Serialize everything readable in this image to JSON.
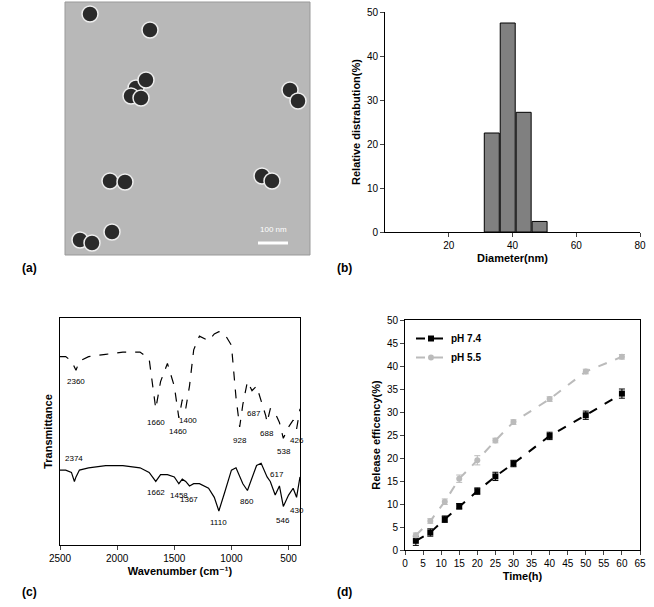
{
  "chart_data": [
    {
      "type": "image",
      "panel": "(a)",
      "scale_bar": "100 nm"
    },
    {
      "type": "histogram",
      "panel": "(b)",
      "x_label": "Diameter(nm)",
      "y_label": "Relative distrabution(%)",
      "bins": [
        31,
        36,
        41,
        46,
        51
      ],
      "values": [
        22.5,
        47.5,
        27.2,
        2.4
      ],
      "color": "#808080",
      "xlim": [
        0,
        80
      ],
      "xticks": [
        20,
        40,
        60,
        80
      ],
      "ylim": [
        0,
        50
      ],
      "yticks": [
        0,
        10,
        20,
        30,
        40,
        50
      ],
      "grid": false
    },
    {
      "type": "line",
      "panel": "(c)",
      "x_label": "Wavenumber (cm⁻¹)",
      "y_label": "Transmittance",
      "x": [
        2500,
        2450,
        2400,
        2374,
        2360,
        2330,
        2250,
        2100,
        1950,
        1800,
        1720,
        1662,
        1620,
        1560,
        1500,
        1460,
        1430,
        1400,
        1367,
        1330,
        1280,
        1200,
        1150,
        1110,
        1060,
        1000,
        960,
        928,
        900,
        860,
        820,
        780,
        740,
        700,
        688,
        660,
        617,
        580,
        546,
        500,
        460,
        430,
        400
      ],
      "series": [
        {
          "color": "#000000",
          "line_style": "dashed",
          "values": [
            83,
            83,
            81,
            78,
            77,
            81,
            83,
            84,
            85,
            85,
            82,
            60,
            72,
            80,
            70,
            56,
            64,
            60,
            70,
            86,
            92,
            90,
            93,
            94,
            93,
            88,
            65,
            52,
            62,
            72,
            68,
            70,
            64,
            57,
            54,
            60,
            58,
            54,
            47,
            52,
            55,
            51,
            60
          ]
        },
        {
          "color": "#000000",
          "line_style": "solid",
          "values": [
            33,
            33,
            32,
            28,
            30,
            33,
            34,
            35,
            35,
            34,
            32,
            28,
            31,
            31,
            30,
            27,
            29,
            28,
            26,
            27,
            27,
            25,
            21,
            15,
            23,
            33,
            34,
            30,
            27,
            24,
            30,
            35,
            36,
            31,
            30,
            28,
            22,
            26,
            17,
            22,
            25,
            21,
            30
          ]
        }
      ],
      "annotations": [
        {
          "text": "2360",
          "x": 2360,
          "y": 72
        },
        {
          "text": "1660",
          "x": 1660,
          "y": 54
        },
        {
          "text": "1460",
          "x": 1470,
          "y": 50
        },
        {
          "text": "1400",
          "x": 1380,
          "y": 55
        },
        {
          "text": "928",
          "x": 928,
          "y": 46
        },
        {
          "text": "687",
          "x": 800,
          "y": 58
        },
        {
          "text": "688",
          "x": 690,
          "y": 49
        },
        {
          "text": "538",
          "x": 540,
          "y": 41
        },
        {
          "text": "426",
          "x": 426,
          "y": 46
        },
        {
          "text": "2374",
          "x": 2374,
          "y": 38
        },
        {
          "text": "1662",
          "x": 1662,
          "y": 23
        },
        {
          "text": "1458",
          "x": 1458,
          "y": 22
        },
        {
          "text": "1367",
          "x": 1367,
          "y": 20
        },
        {
          "text": "1110",
          "x": 1110,
          "y": 10
        },
        {
          "text": "860",
          "x": 860,
          "y": 19
        },
        {
          "text": "617",
          "x": 600,
          "y": 31
        },
        {
          "text": "546",
          "x": 546,
          "y": 11
        },
        {
          "text": "430",
          "x": 430,
          "y": 15
        }
      ],
      "xlim": [
        2500,
        400
      ],
      "xticks": [
        2500,
        2000,
        1500,
        1000,
        500
      ],
      "ylim": [
        0,
        100
      ],
      "yticks": [],
      "tick_labels": "x",
      "grid": false
    },
    {
      "type": "line",
      "panel": "(d)",
      "x_label": "Time(h)",
      "y_label": "Release efficency(%)",
      "x": [
        3,
        7,
        11,
        15,
        20,
        25,
        30,
        40,
        50,
        60
      ],
      "series": [
        {
          "name": "pH 7.4",
          "color": "#000000",
          "marker": "square",
          "line_style": "dashed",
          "values": [
            2.0,
            3.8,
            6.7,
            9.5,
            12.8,
            16.0,
            18.8,
            24.8,
            29.3,
            34.0
          ],
          "errors": [
            1.0,
            0.8,
            0.7,
            0.6,
            0.7,
            0.9,
            0.7,
            0.8,
            0.9,
            1.0
          ]
        },
        {
          "name": "pH 5.5",
          "color": "#bbbbbb",
          "marker": "circle",
          "line_style": "dashed",
          "values": [
            3.2,
            6.3,
            10.5,
            15.5,
            19.5,
            23.8,
            27.8,
            32.8,
            38.8,
            42.0
          ],
          "errors": [
            0.5,
            0.5,
            0.6,
            0.8,
            1.0,
            0.5,
            0.5,
            0.5,
            0.5,
            0.5
          ]
        }
      ],
      "xlim": [
        0,
        65
      ],
      "xticks": [
        0,
        5,
        10,
        15,
        20,
        25,
        30,
        35,
        40,
        45,
        50,
        55,
        60,
        65
      ],
      "ylim": [
        0,
        50
      ],
      "yticks": [
        0,
        5,
        10,
        15,
        20,
        25,
        30,
        35,
        40,
        45,
        50
      ],
      "legend": "upper left",
      "grid": false
    }
  ]
}
